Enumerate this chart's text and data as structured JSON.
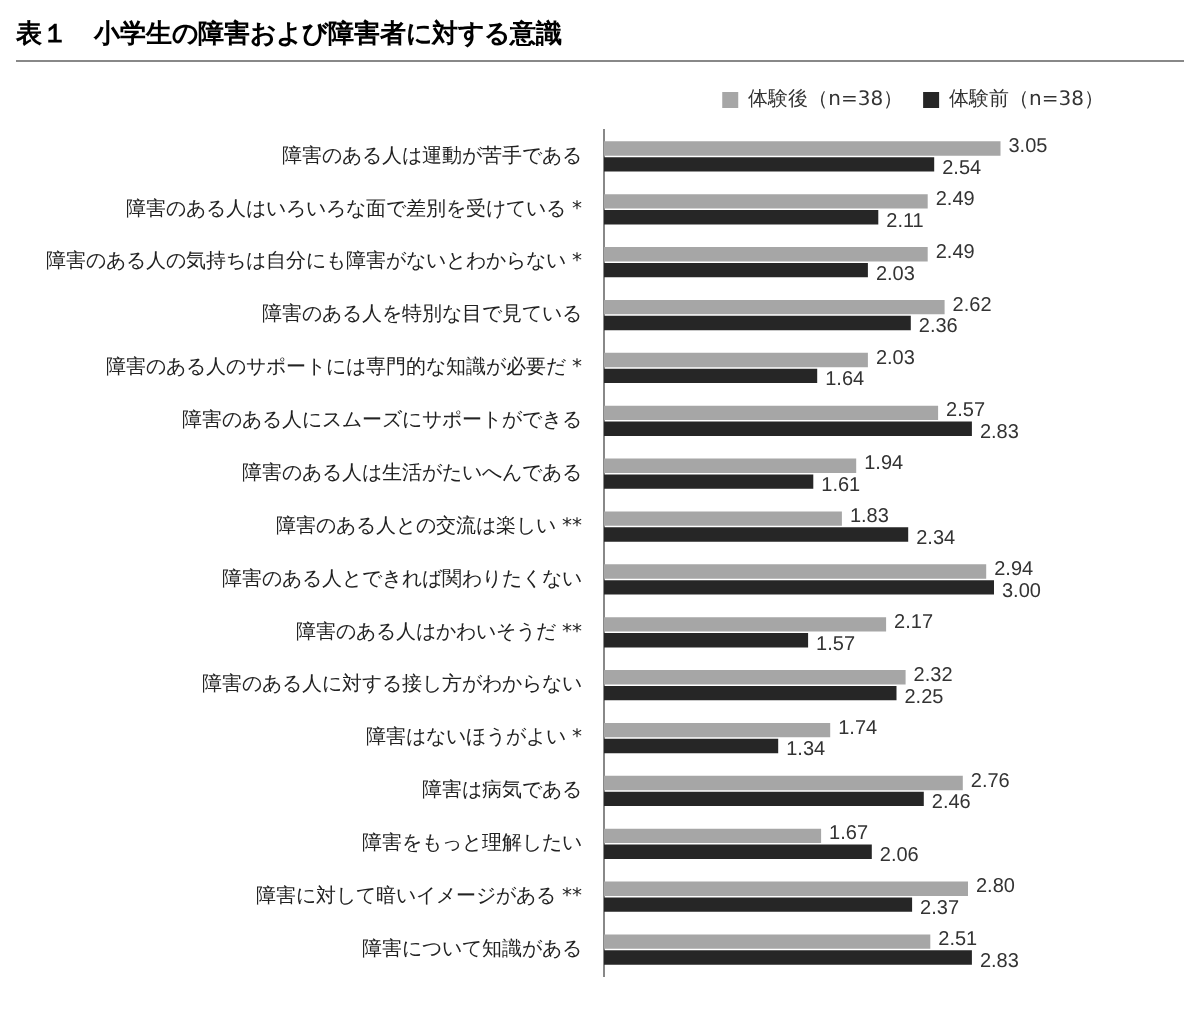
{
  "chart_data": {
    "type": "bar",
    "orientation": "horizontal",
    "title": "表１　小学生の障害および障害者に対する意識",
    "categories": [
      "障害のある人は運動が苦手である",
      "障害のある人はいろいろな面で差別を受けている *",
      "障害のある人の気持ちは自分にも障害がないとわからない *",
      "障害のある人を特別な目で見ている",
      "障害のある人のサポートには専門的な知識が必要だ *",
      "障害のある人にスムーズにサポートができる",
      "障害のある人は生活がたいへんである",
      "障害のある人との交流は楽しい **",
      "障害のある人とできれば関わりたくない",
      "障害のある人はかわいそうだ **",
      "障害のある人に対する接し方がわからない",
      "障害はないほうがよい *",
      "障害は病気である",
      "障害をもっと理解したい",
      "障害に対して暗いイメージがある **",
      "障害について知識がある"
    ],
    "series": [
      {
        "name": "体験後（n=38）",
        "color": "#a6a6a6",
        "values": [
          3.05,
          2.49,
          2.49,
          2.62,
          2.03,
          2.57,
          1.94,
          1.83,
          2.94,
          2.17,
          2.32,
          1.74,
          2.76,
          1.67,
          2.8,
          2.51
        ],
        "value_labels": [
          "3.05",
          "2.49",
          "2.49",
          "2.62",
          "2.03",
          "2.57",
          "1.94",
          "1.83",
          "2.94",
          "2.17",
          "2.32",
          "1.74",
          "2.76",
          "1.67",
          "2.80",
          "2.51"
        ]
      },
      {
        "name": "体験前（n=38）",
        "color": "#262626",
        "values": [
          2.54,
          2.11,
          2.03,
          2.36,
          1.64,
          2.83,
          1.61,
          2.34,
          3.0,
          1.57,
          2.25,
          1.34,
          2.46,
          2.06,
          2.37,
          2.83
        ],
        "value_labels": [
          "2.54",
          "2.11",
          "2.03",
          "2.36",
          "1.64",
          "2.83",
          "1.61",
          "2.34",
          "3.00",
          "1.57",
          "2.25",
          "1.34",
          "2.46",
          "2.06",
          "2.37",
          "2.83"
        ]
      }
    ],
    "tick_labels": "y",
    "legend": "top right",
    "grid": false
  }
}
